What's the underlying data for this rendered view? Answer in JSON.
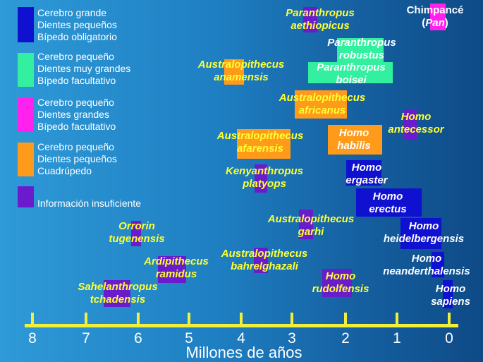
{
  "colors": {
    "blue": "#1010d0",
    "green": "#33f0a0",
    "magenta": "#ff22ee",
    "orange": "#ff9a1a",
    "purple": "#6a1ccc",
    "axis": "#f2ef3a",
    "yellow_text": "#ffff33"
  },
  "legend": [
    {
      "lines": [
        "Cerebro grande",
        "Dientes pequeños",
        "Bípedo obligatorio"
      ]
    },
    {
      "lines": [
        "Cerebro pequeño",
        "Dientes muy grandes",
        "Bípedo facultativo"
      ]
    },
    {
      "lines": [
        "Cerebro pequeño",
        "Dientes grandes",
        "Bípedo facultativo"
      ]
    },
    {
      "lines": [
        "Cerebro pequeño",
        "Dientes pequeños",
        "Cuadrúpedo"
      ]
    },
    {
      "lines": [
        "Información insuficiente"
      ]
    }
  ],
  "chimp": {
    "name": "Chimpancé",
    "genus_open": "(",
    "genus": "Pan",
    "genus_close": ")"
  },
  "species": [
    {
      "line1": "Paranthropus",
      "line2": "aethiopicus"
    },
    {
      "line1": "Paranthropus",
      "line2": "robustus"
    },
    {
      "line1": "Paranthropus",
      "line2": "boisei"
    },
    {
      "line1": "Australopithecus",
      "line2": "anamensis"
    },
    {
      "line1": "Australopithecus",
      "line2": "africanus"
    },
    {
      "line1": "Homo",
      "line2": "antecessor"
    },
    {
      "line1": "Australopithecus",
      "line2": "afarensis"
    },
    {
      "line1": "Homo",
      "line2": "habilis"
    },
    {
      "line1": "Kenyanthropus",
      "line2": "platyops"
    },
    {
      "line1": "Homo",
      "line2": "ergaster"
    },
    {
      "line1": "Homo",
      "line2": "erectus"
    },
    {
      "line1": "Australopithecus",
      "line2": "garhi"
    },
    {
      "line1": "Orrorin",
      "line2": "tugenensis"
    },
    {
      "line1": "Homo",
      "line2": "heidelbergensis"
    },
    {
      "line1": "Ardipithecus",
      "line2": "ramidus"
    },
    {
      "line1": "Australopithecus",
      "line2": "bahrelghazali"
    },
    {
      "line1": "Homo",
      "line2": "neanderthalensis"
    },
    {
      "line1": "Homo",
      "line2": "rudolfensis"
    },
    {
      "line1": "Sahelanthropus",
      "line2": "tchadensis"
    },
    {
      "line1": "Homo",
      "line2": "sapiens"
    }
  ],
  "axis": {
    "ticks": [
      "8",
      "7",
      "6",
      "5",
      "4",
      "3",
      "2",
      "1",
      "0"
    ],
    "title": "Millones de años"
  }
}
